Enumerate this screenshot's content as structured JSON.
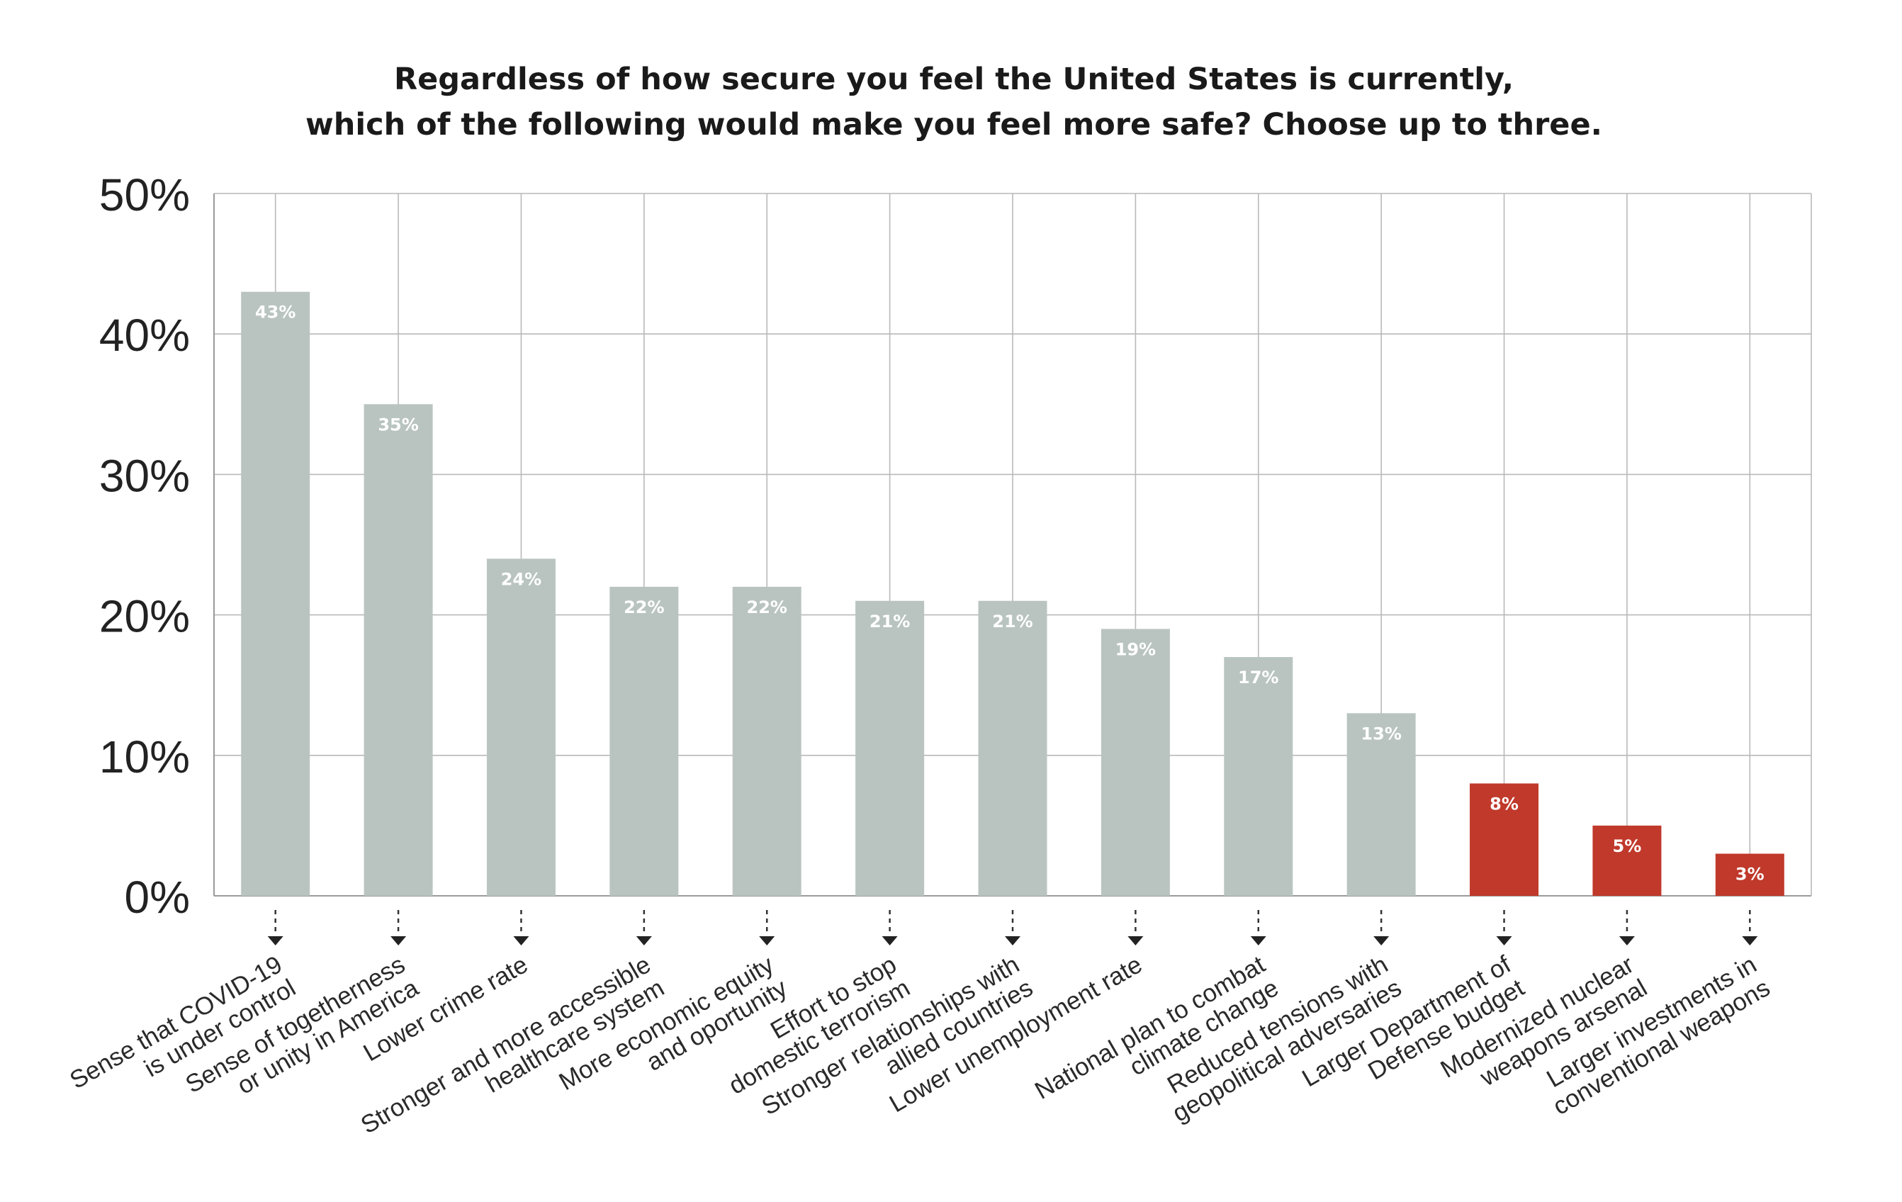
{
  "chart_data": {
    "type": "bar",
    "title": [
      "Regardless of how secure you feel the United States is currently,",
      "which of the following would make you feel more safe? Choose up to three."
    ],
    "xlabel": "",
    "ylabel": "",
    "ylim": [
      0,
      50
    ],
    "yticks": [
      0,
      10,
      20,
      30,
      40,
      50
    ],
    "ytick_labels": [
      "0%",
      "10%",
      "20%",
      "30%",
      "40%",
      "50%"
    ],
    "grid": true,
    "categories": [
      [
        "Sense that COVID-19",
        "is under control"
      ],
      [
        "Sense of togetherness",
        "or unity in America"
      ],
      [
        "Lower crime rate"
      ],
      [
        "Stronger and more accessible",
        "healthcare system"
      ],
      [
        "More economic equity",
        "and oportunity"
      ],
      [
        "Effort to stop",
        "domestic terrorism"
      ],
      [
        "Stronger relationships with",
        "allied countries"
      ],
      [
        "Lower unemployment rate"
      ],
      [
        "National plan to combat",
        "climate change"
      ],
      [
        "Reduced tensions with",
        "geopolitical adversaries"
      ],
      [
        "Larger Department of",
        "Defense budget"
      ],
      [
        "Modernized nuclear",
        "weapons arsenal"
      ],
      [
        "Larger investments in",
        "conventional weapons"
      ]
    ],
    "values": [
      43,
      35,
      24,
      22,
      22,
      21,
      21,
      19,
      17,
      13,
      8,
      5,
      3
    ],
    "value_labels": [
      "43%",
      "35%",
      "24%",
      "22%",
      "22%",
      "21%",
      "21%",
      "19%",
      "17%",
      "13%",
      "8%",
      "5%",
      "3%"
    ],
    "highlighted": [
      false,
      false,
      false,
      false,
      false,
      false,
      false,
      false,
      false,
      false,
      true,
      true,
      true
    ],
    "colors": {
      "bar": "#b9c4c1",
      "highlight": "#c0392b",
      "grid": "#b9b9b9",
      "text": "#222222"
    }
  }
}
